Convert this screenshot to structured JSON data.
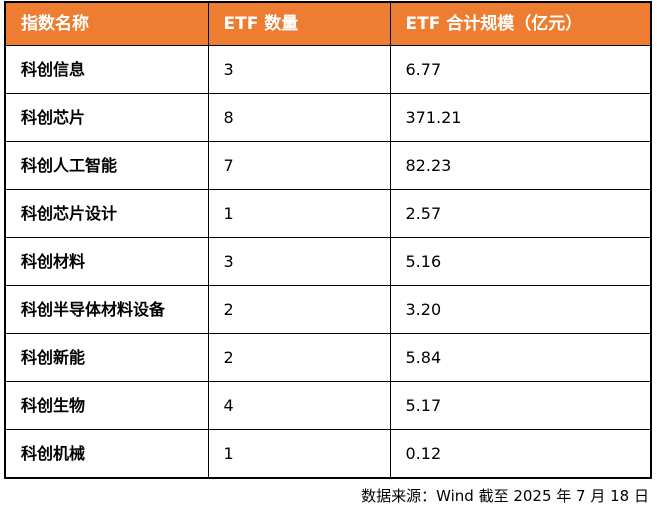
{
  "colors": {
    "header_bg": "#ED7D31",
    "header_text": "#FFFFFF",
    "border": "#000000",
    "body_text": "#000000"
  },
  "table": {
    "headers": [
      "指数名称",
      "ETF 数量",
      "ETF 合计规模（亿元）"
    ],
    "rows": [
      {
        "name": "科创信息",
        "count": "3",
        "scale": "6.77"
      },
      {
        "name": "科创芯片",
        "count": "8",
        "scale": "371.21"
      },
      {
        "name": "科创人工智能",
        "count": "7",
        "scale": "82.23"
      },
      {
        "name": "科创芯片设计",
        "count": "1",
        "scale": "2.57"
      },
      {
        "name": "科创材料",
        "count": "3",
        "scale": "5.16"
      },
      {
        "name": "科创半导体材料设备",
        "count": "2",
        "scale": "3.20"
      },
      {
        "name": "科创新能",
        "count": "2",
        "scale": "5.84"
      },
      {
        "name": "科创生物",
        "count": "4",
        "scale": "5.17"
      },
      {
        "name": "科创机械",
        "count": "1",
        "scale": "0.12"
      }
    ]
  },
  "footer": {
    "source_note": "数据来源：Wind 截至 2025 年 7 月 18 日"
  },
  "chart_data": {
    "type": "table",
    "title": "",
    "columns": [
      "指数名称",
      "ETF 数量",
      "ETF 合计规模（亿元）"
    ],
    "rows": [
      [
        "科创信息",
        3,
        6.77
      ],
      [
        "科创芯片",
        8,
        371.21
      ],
      [
        "科创人工智能",
        7,
        82.23
      ],
      [
        "科创芯片设计",
        1,
        2.57
      ],
      [
        "科创材料",
        3,
        5.16
      ],
      [
        "科创半导体材料设备",
        2,
        3.2
      ],
      [
        "科创新能",
        2,
        5.84
      ],
      [
        "科创生物",
        4,
        5.17
      ],
      [
        "科创机械",
        1,
        0.12
      ]
    ],
    "series": [
      {
        "name": "ETF 数量",
        "values": [
          3,
          8,
          7,
          1,
          3,
          2,
          2,
          4,
          1
        ]
      },
      {
        "name": "ETF 合计规模（亿元）",
        "values": [
          6.77,
          371.21,
          82.23,
          2.57,
          5.16,
          3.2,
          5.84,
          5.17,
          0.12
        ]
      }
    ],
    "categories": [
      "科创信息",
      "科创芯片",
      "科创人工智能",
      "科创芯片设计",
      "科创材料",
      "科创半导体材料设备",
      "科创新能",
      "科创生物",
      "科创机械"
    ],
    "source_note": "数据来源：Wind 截至 2025 年 7 月 18 日"
  }
}
